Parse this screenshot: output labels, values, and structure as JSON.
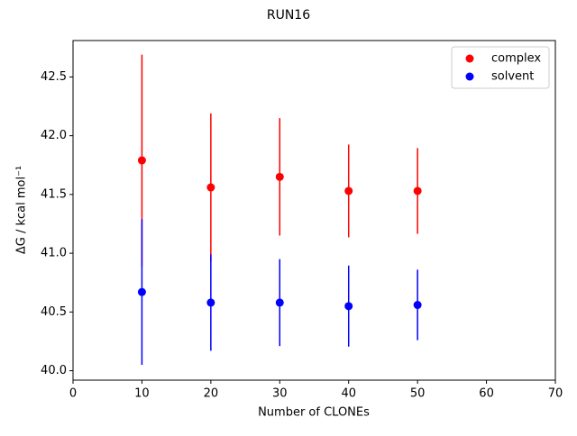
{
  "chart_data": {
    "type": "errorbar",
    "title": "RUN16",
    "xlabel": "Number of CLONEs",
    "ylabel": "ΔG / kcal mol⁻¹",
    "x": [
      10,
      20,
      30,
      40,
      50
    ],
    "series": [
      {
        "name": "complex",
        "color": "#ff0000",
        "values": [
          41.79,
          41.56,
          41.65,
          41.53,
          41.53
        ],
        "errors": [
          0.9,
          0.63,
          0.5,
          0.395,
          0.365
        ]
      },
      {
        "name": "solvent",
        "color": "#0000ff",
        "values": [
          40.67,
          40.58,
          40.58,
          40.55,
          40.56
        ],
        "errors": [
          0.62,
          0.41,
          0.37,
          0.345,
          0.3
        ]
      }
    ],
    "xlim": [
      0,
      70
    ],
    "xticks": [
      0,
      10,
      20,
      30,
      40,
      50,
      60,
      70
    ],
    "ylim": [
      39.92,
      42.81
    ],
    "yticks": [
      {
        "value": 40,
        "label": "40.0"
      },
      40.5,
      {
        "value": 41,
        "label": "41.0"
      },
      41.5,
      {
        "value": 42,
        "label": "42.0"
      },
      42.5
    ],
    "legend": "upper right",
    "grid": false
  }
}
